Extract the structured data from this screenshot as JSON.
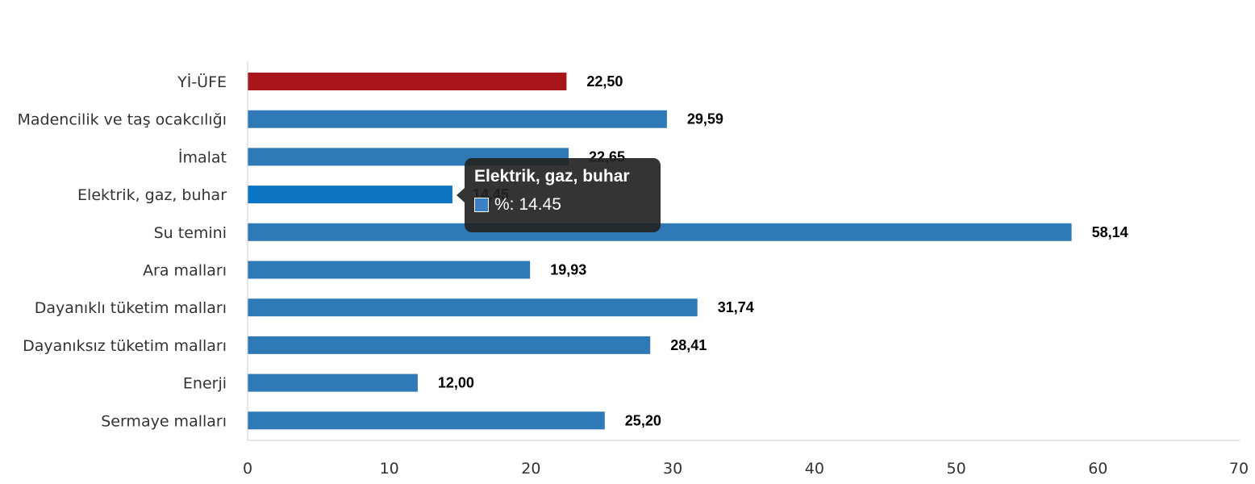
{
  "chart_data": {
    "type": "bar",
    "orientation": "horizontal",
    "categories": [
      "Yİ-ÜFE",
      "Madencilik ve taş ocakcılığı",
      "İmalat",
      "Elektrik, gaz, buhar",
      "Su temini",
      "Ara malları",
      "Dayanıklı tüketim malları",
      "Dayanıksız tüketim malları",
      "Enerji",
      "Sermaye malları"
    ],
    "values": [
      22.5,
      29.59,
      22.65,
      14.45,
      58.14,
      19.93,
      31.74,
      28.41,
      12.0,
      25.2
    ],
    "value_labels": [
      "22,50",
      "29,59",
      "22,65",
      "14,45",
      "58,14",
      "19,93",
      "31,74",
      "28,41",
      "12,00",
      "25,20"
    ],
    "highlight_index": 0,
    "hover_index": 3,
    "colors": {
      "bar": "#2f7ab6",
      "highlight": "#a8151b",
      "hover": "#0b74c3"
    },
    "xlim": [
      0,
      70
    ],
    "xticks": [
      0,
      10,
      20,
      30,
      40,
      50,
      60,
      70
    ],
    "grid": false,
    "legend": "none"
  },
  "tooltip": {
    "title": "Elektrik, gaz, buhar",
    "value_text": "%: 14.45"
  }
}
